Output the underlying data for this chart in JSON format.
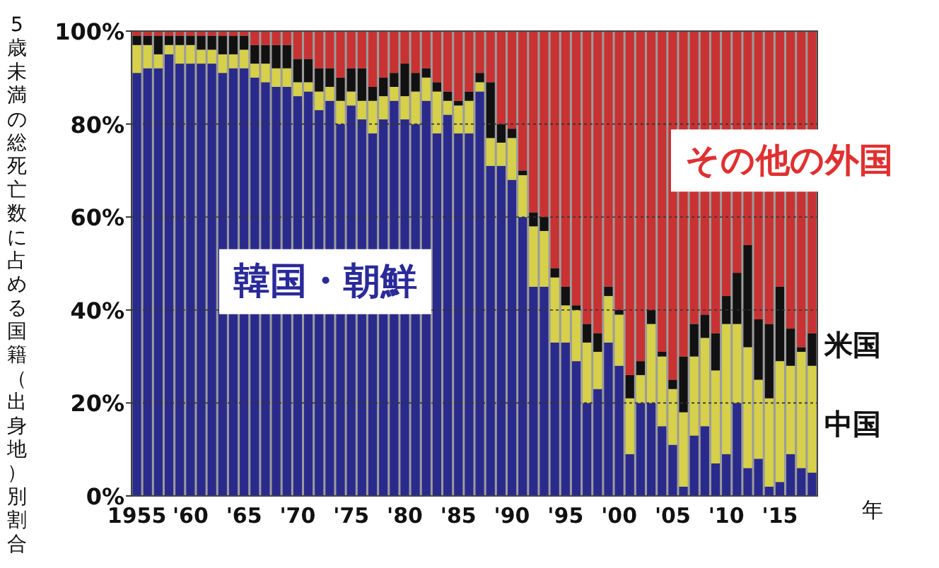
{
  "chart_data": {
    "type": "bar",
    "stacked": true,
    "ylabel": "5歳未満の総死亡数に占める国籍（出身地）別割合",
    "xlabel": "年",
    "categories": [
      "1955",
      null,
      null,
      null,
      null,
      "'60",
      null,
      null,
      null,
      null,
      "'65",
      null,
      null,
      null,
      null,
      "'70",
      null,
      null,
      null,
      null,
      "'75",
      null,
      null,
      null,
      null,
      "'80",
      null,
      null,
      null,
      null,
      "'85",
      null,
      null,
      null,
      null,
      "'90",
      null,
      null,
      null,
      null,
      "'95",
      null,
      null,
      null,
      null,
      "'00",
      null,
      null,
      null,
      null,
      "'05",
      null,
      null,
      null,
      null,
      "'10",
      null,
      null,
      null,
      null,
      "'15",
      null,
      null,
      null
    ],
    "ylim": [
      0,
      100
    ],
    "yticks": [
      {
        "value": 0,
        "label": "0%"
      },
      {
        "value": 20,
        "label": "20%"
      },
      {
        "value": 40,
        "label": "40%"
      },
      {
        "value": 60,
        "label": "60%"
      },
      {
        "value": 80,
        "label": "80%"
      },
      {
        "value": 100,
        "label": "100%"
      }
    ],
    "grid": "y",
    "legend": false,
    "series": [
      {
        "name": "韓国・朝鮮",
        "color": "#2a2a8c",
        "values": [
          91,
          92,
          92,
          95,
          93,
          93,
          93,
          93,
          91,
          92,
          92,
          90,
          89,
          88,
          88,
          86,
          87,
          83,
          85,
          80,
          84,
          81,
          78,
          81,
          85,
          81,
          80,
          85,
          78,
          82,
          78,
          78,
          87,
          71,
          71,
          68,
          60,
          45,
          45,
          33,
          33,
          29,
          20,
          23,
          33,
          28,
          9,
          20,
          20,
          15,
          11,
          2,
          13,
          15,
          7,
          9,
          20,
          6,
          8,
          2,
          3,
          9,
          6,
          5
        ]
      },
      {
        "name": "中国",
        "color": "#d6d04a",
        "values": [
          6,
          5,
          3,
          2,
          4,
          4,
          3,
          3,
          4,
          3,
          4,
          3,
          4,
          4,
          4,
          3,
          2,
          4,
          3,
          5,
          3,
          4,
          7,
          5,
          3,
          5,
          7,
          5,
          9,
          3,
          6,
          7,
          2,
          6,
          5,
          9,
          9,
          13,
          12,
          14,
          8,
          11,
          13,
          8,
          10,
          11,
          12,
          6,
          17,
          15,
          12,
          16,
          17,
          19,
          20,
          28,
          17,
          26,
          17,
          19,
          26,
          19,
          25,
          23
        ]
      },
      {
        "name": "米国",
        "color": "#111111",
        "values": [
          2,
          2,
          4,
          2,
          2,
          2,
          3,
          3,
          4,
          4,
          3,
          4,
          4,
          5,
          5,
          5,
          5,
          5,
          4,
          5,
          5,
          7,
          3,
          4,
          3,
          7,
          4,
          2,
          2,
          2,
          1,
          2,
          2,
          12,
          4,
          2,
          1,
          3,
          3,
          2,
          4,
          1,
          4,
          4,
          2,
          1,
          5,
          3,
          3,
          1,
          2,
          12,
          7,
          5,
          8,
          6,
          11,
          22,
          13,
          16,
          16,
          8,
          1,
          7
        ]
      },
      {
        "name": "その他の外国",
        "color": "#c83232",
        "values": [
          1,
          1,
          1,
          1,
          1,
          1,
          1,
          1,
          1,
          1,
          1,
          3,
          3,
          3,
          3,
          6,
          6,
          8,
          8,
          10,
          8,
          8,
          12,
          10,
          9,
          7,
          9,
          8,
          11,
          13,
          15,
          13,
          9,
          11,
          20,
          21,
          30,
          39,
          40,
          51,
          55,
          59,
          63,
          65,
          55,
          60,
          74,
          71,
          60,
          69,
          75,
          70,
          63,
          61,
          65,
          57,
          52,
          46,
          62,
          63,
          55,
          64,
          68,
          65
        ]
      }
    ]
  }
}
